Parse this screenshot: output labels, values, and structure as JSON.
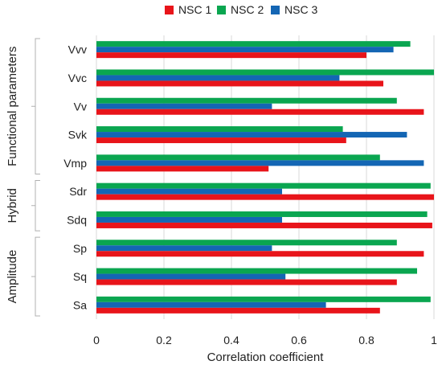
{
  "chart_data": {
    "type": "bar",
    "orientation": "horizontal",
    "title": "",
    "xlabel": "Correlation coefficient",
    "ylabel": "",
    "xlim": [
      0,
      1
    ],
    "x_ticks": [
      "0",
      "0.2",
      "0.4",
      "0.6",
      "0.8",
      "1"
    ],
    "grid": "vertical",
    "legend_position": "top",
    "categories": [
      "Vvv",
      "Vvc",
      "Vv",
      "Svk",
      "Vmp",
      "Sdr",
      "Sdq",
      "Sp",
      "Sq",
      "Sa"
    ],
    "series": [
      {
        "name": "NSC 1",
        "color": "#e8141a",
        "values": [
          0.8,
          0.85,
          0.97,
          0.74,
          0.51,
          1.0,
          0.995,
          0.97,
          0.89,
          0.84
        ]
      },
      {
        "name": "NSC 2",
        "color": "#0aa650",
        "values": [
          0.93,
          1.0,
          0.89,
          0.73,
          0.84,
          0.99,
          0.98,
          0.89,
          0.95,
          0.99
        ]
      },
      {
        "name": "NSC 3",
        "color": "#1466b4",
        "values": [
          0.88,
          0.72,
          0.52,
          0.92,
          0.97,
          0.55,
          0.55,
          0.52,
          0.56,
          0.68
        ]
      }
    ],
    "groups": [
      {
        "label": "Functional parameters",
        "categories": [
          "Vvv",
          "Vvc",
          "Vv",
          "Svk",
          "Vmp"
        ]
      },
      {
        "label": "Hybrid",
        "categories": [
          "Sdr",
          "Sdq"
        ]
      },
      {
        "label": "Amplitude",
        "categories": [
          "Sp",
          "Sq",
          "Sa"
        ]
      }
    ]
  }
}
